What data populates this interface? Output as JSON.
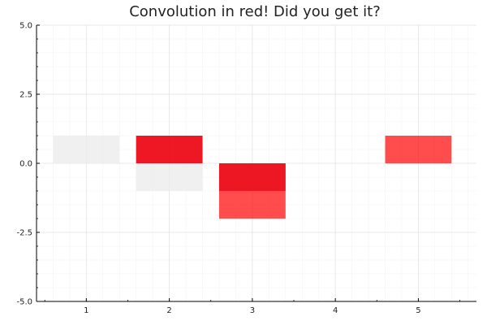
{
  "chart_data": {
    "type": "bar",
    "title": "Convolution in red! Did you get it?",
    "xlabel": "",
    "ylabel": "",
    "x_ticks": [
      1,
      2,
      3,
      4,
      5
    ],
    "y_ticks": [
      -5.0,
      -2.5,
      0.0,
      2.5,
      5.0
    ],
    "y_tick_labels": [
      "-5.0",
      "-2.5",
      "0.0",
      "2.5",
      "5.0"
    ],
    "xlim": [
      0.4,
      5.7
    ],
    "ylim": [
      -5,
      5
    ],
    "grid": true,
    "legend": "none",
    "bar_width": 0.8,
    "series": [
      {
        "color": "#ebebeb",
        "opacity": 0.75,
        "x": [
          1,
          2,
          3,
          4,
          5
        ],
        "values": [
          1,
          -1,
          -1,
          0,
          0
        ]
      },
      {
        "color": "#b4144e",
        "opacity": 0.75,
        "x": [
          1,
          2,
          3,
          4,
          5
        ],
        "values": [
          0,
          1,
          -1,
          0,
          0
        ]
      },
      {
        "color": "#ff0000",
        "opacity": 0.7,
        "x": [
          1,
          2,
          3,
          4,
          5
        ],
        "values": [
          0,
          1,
          -2,
          0,
          1
        ]
      }
    ]
  }
}
